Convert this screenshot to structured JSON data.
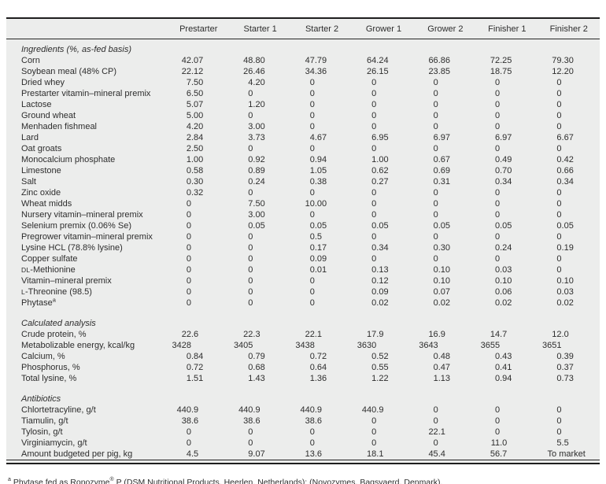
{
  "table": {
    "bg_color": "#ecedec",
    "rule_color": "#1e1e1e",
    "text_color": "#2d2d2d",
    "columns": [
      "Prestarter",
      "Starter 1",
      "Starter 2",
      "Grower 1",
      "Grower 2",
      "Finisher 1",
      "Finisher 2"
    ],
    "sections": [
      {
        "title": "Ingredients (%, as-fed basis)",
        "rows": [
          {
            "label": "Corn",
            "values": [
              "42.07",
              "48.80",
              "47.79",
              "64.24",
              "66.86",
              "72.25",
              "79.30"
            ]
          },
          {
            "label": "Soybean meal (48% CP)",
            "values": [
              "22.12",
              "26.46",
              "34.36",
              "26.15",
              "23.85",
              "18.75",
              "12.20"
            ]
          },
          {
            "label": "Dried whey",
            "values": [
              "7.50",
              "4.20",
              "0",
              "0",
              "0",
              "0",
              "0"
            ]
          },
          {
            "label": "Prestarter vitamin–mineral premix",
            "values": [
              "6.50",
              "0",
              "0",
              "0",
              "0",
              "0",
              "0"
            ]
          },
          {
            "label": "Lactose",
            "values": [
              "5.07",
              "1.20",
              "0",
              "0",
              "0",
              "0",
              "0"
            ]
          },
          {
            "label": "Ground wheat",
            "values": [
              "5.00",
              "0",
              "0",
              "0",
              "0",
              "0",
              "0"
            ]
          },
          {
            "label": "Menhaden fishmeal",
            "values": [
              "4.20",
              "3.00",
              "0",
              "0",
              "0",
              "0",
              "0"
            ]
          },
          {
            "label": "Lard",
            "values": [
              "2.84",
              "3.73",
              "4.67",
              "6.95",
              "6.97",
              "6.97",
              "6.67"
            ]
          },
          {
            "label": "Oat groats",
            "values": [
              "2.50",
              "0",
              "0",
              "0",
              "0",
              "0",
              "0"
            ]
          },
          {
            "label": "Monocalcium phosphate",
            "values": [
              "1.00",
              "0.92",
              "0.94",
              "1.00",
              "0.67",
              "0.49",
              "0.42"
            ]
          },
          {
            "label": "Limestone",
            "values": [
              "0.58",
              "0.89",
              "1.05",
              "0.62",
              "0.69",
              "0.70",
              "0.66"
            ]
          },
          {
            "label": "Salt",
            "values": [
              "0.30",
              "0.24",
              "0.38",
              "0.27",
              "0.31",
              "0.34",
              "0.34"
            ]
          },
          {
            "label": "Zinc oxide",
            "values": [
              "0.32",
              "0",
              "0",
              "0",
              "0",
              "0",
              "0"
            ]
          },
          {
            "label": "Wheat midds",
            "values": [
              "0",
              "7.50",
              "10.00",
              "0",
              "0",
              "0",
              "0"
            ]
          },
          {
            "label": "Nursery vitamin–mineral premix",
            "values": [
              "0",
              "3.00",
              "0",
              "0",
              "0",
              "0",
              "0"
            ]
          },
          {
            "label": "Selenium premix (0.06% Se)",
            "values": [
              "0",
              "0.05",
              "0.05",
              "0.05",
              "0.05",
              "0.05",
              "0.05"
            ]
          },
          {
            "label": "Pregrower vitamin–mineral premix",
            "values": [
              "0",
              "0",
              "0.5",
              "0",
              "0",
              "0",
              "0"
            ]
          },
          {
            "label": "Lysine HCL (78.8% lysine)",
            "values": [
              "0",
              "0",
              "0.17",
              "0.34",
              "0.30",
              "0.24",
              "0.19"
            ]
          },
          {
            "label": "Copper sulfate",
            "values": [
              "0",
              "0",
              "0.09",
              "0",
              "0",
              "0",
              "0"
            ]
          },
          {
            "sc": "DL",
            "label": "-Methionine",
            "values": [
              "0",
              "0",
              "0.01",
              "0.13",
              "0.10",
              "0.03",
              "0"
            ]
          },
          {
            "label": "Vitamin–mineral premix",
            "values": [
              "0",
              "0",
              "0",
              "0.12",
              "0.10",
              "0.10",
              "0.10"
            ]
          },
          {
            "sc": "L",
            "label": "-Threonine (98.5)",
            "values": [
              "0",
              "0",
              "0",
              "0.09",
              "0.07",
              "0.06",
              "0.03"
            ]
          },
          {
            "label": "Phytase",
            "sup": "a",
            "values": [
              "0",
              "0",
              "0",
              "0.02",
              "0.02",
              "0.02",
              "0.02"
            ]
          }
        ]
      },
      {
        "title": "Calculated analysis",
        "rows": [
          {
            "label": "Crude protein, %",
            "values": [
              "22.6",
              "22.3",
              "22.1",
              "17.9",
              "16.9",
              "14.7",
              "12.0"
            ]
          },
          {
            "label": "Metabolizable energy, kcal/kg",
            "values": [
              "3428",
              "3405",
              "3438",
              "3630",
              "3643",
              "3655",
              "3651"
            ]
          },
          {
            "label": "Calcium, %",
            "values": [
              "0.84",
              "0.79",
              "0.72",
              "0.52",
              "0.48",
              "0.43",
              "0.39"
            ]
          },
          {
            "label": "Phosphorus, %",
            "values": [
              "0.72",
              "0.68",
              "0.64",
              "0.55",
              "0.47",
              "0.41",
              "0.37"
            ]
          },
          {
            "label": "Total lysine, %",
            "values": [
              "1.51",
              "1.43",
              "1.36",
              "1.22",
              "1.13",
              "0.94",
              "0.73"
            ]
          }
        ]
      },
      {
        "title": "Antibiotics",
        "rows": [
          {
            "label": "Chlortetracyline, g/t",
            "values": [
              "440.9",
              "440.9",
              "440.9",
              "440.9",
              "0",
              "0",
              "0"
            ]
          },
          {
            "label": "Tiamulin, g/t",
            "values": [
              "38.6",
              "38.6",
              "38.6",
              "0",
              "0",
              "0",
              "0"
            ]
          },
          {
            "label": "Tylosin, g/t",
            "values": [
              "0",
              "0",
              "0",
              "0",
              "22.1",
              "0",
              "0"
            ]
          },
          {
            "label": "Virginiamycin, g/t",
            "values": [
              "0",
              "0",
              "0",
              "0",
              "0",
              "11.0",
              "5.5"
            ]
          },
          {
            "label": "Amount budgeted per pig, kg",
            "values": [
              "4.5",
              "9.07",
              "13.6",
              "18.1",
              "45.4",
              "56.7",
              "To market"
            ]
          }
        ]
      }
    ],
    "footnote": {
      "marker": "a",
      "pre": "Phytase fed as Ronozyme",
      "reg": "®",
      "post": "P (DSM Nutritional Products, Heerlen, Netherlands); (Novozymes, Bagsvaerd, Denmark)."
    }
  }
}
